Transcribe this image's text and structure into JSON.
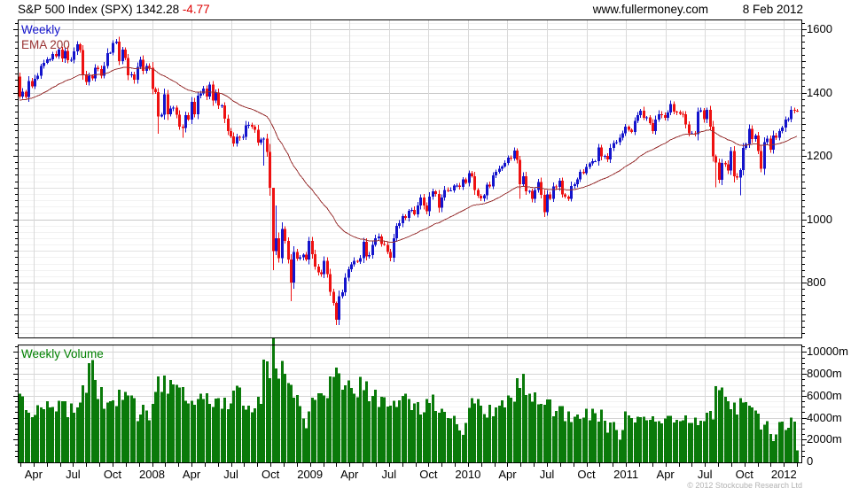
{
  "header": {
    "title": "S&P 500 Index (SPX) 1342.28",
    "change": "-4.77",
    "site": "www.fullermoney.com",
    "date": "8 Feb 2012"
  },
  "price_panel": {
    "legend_weekly": "Weekly",
    "legend_ema": "EMA 200",
    "axis_ticks": [
      1600,
      1400,
      1200,
      1000,
      800
    ]
  },
  "volume_panel": {
    "legend": "Weekly Volume",
    "axis_ticks": [
      {
        "label": "10000m",
        "value": 10000
      },
      {
        "label": "8000m",
        "value": 8000
      },
      {
        "label": "6000m",
        "value": 6000
      },
      {
        "label": "4000m",
        "value": 4000
      },
      {
        "label": "2000m",
        "value": 2000
      },
      {
        "label": "0",
        "value": 0
      }
    ]
  },
  "x_axis": {
    "labels": [
      {
        "text": "Apr",
        "m": 1
      },
      {
        "text": "Jul",
        "m": 4
      },
      {
        "text": "Oct",
        "m": 7
      },
      {
        "text": "2008",
        "m": 10
      },
      {
        "text": "Apr",
        "m": 13
      },
      {
        "text": "Jul",
        "m": 16
      },
      {
        "text": "Oct",
        "m": 19
      },
      {
        "text": "2009",
        "m": 22
      },
      {
        "text": "Apr",
        "m": 25
      },
      {
        "text": "Jul",
        "m": 28
      },
      {
        "text": "Oct",
        "m": 31
      },
      {
        "text": "2010",
        "m": 34
      },
      {
        "text": "Apr",
        "m": 37
      },
      {
        "text": "Jul",
        "m": 40
      },
      {
        "text": "Oct",
        "m": 43
      },
      {
        "text": "2011",
        "m": 46
      },
      {
        "text": "Apr",
        "m": 49
      },
      {
        "text": "Jul",
        "m": 52
      },
      {
        "text": "Oct",
        "m": 55
      },
      {
        "text": "2012",
        "m": 58
      }
    ]
  },
  "footer": {
    "copyright": "© 2012 Stockcube Research Ltd"
  },
  "colors": {
    "up": "#1414cc",
    "down": "#ee1111",
    "ema": "#993333",
    "volume": "#0a7a0a",
    "volume_text": "#008000",
    "change": "#dd0000",
    "copyright": "#b2b2b2",
    "grid_minor": "#f2f2f2",
    "grid_mid": "#e2e2e2",
    "grid_major": "#c9c9c9",
    "grid_vert": "#d9d9d9",
    "border": "#000000"
  },
  "chart_data": {
    "type": "candlestick+volume",
    "title": "S&P 500 Index (SPX)",
    "period": "weekly",
    "last_price": 1342.28,
    "last_change": -4.77,
    "date_range": [
      "2007-02-26",
      "2012-02-08"
    ],
    "price_axis_range": [
      624,
      1631
    ],
    "volume_axis_range": [
      0,
      10800
    ],
    "first_open": 1451,
    "closes": [
      1387,
      1403,
      1386,
      1436,
      1420,
      1443,
      1453,
      1484,
      1494,
      1505,
      1505,
      1522,
      1515,
      1536,
      1507,
      1532,
      1502,
      1503,
      1530,
      1552,
      1534,
      1458,
      1433,
      1453,
      1445,
      1479,
      1474,
      1453,
      1484,
      1525,
      1526,
      1557,
      1561,
      1500,
      1535,
      1509,
      1454,
      1458,
      1440,
      1481,
      1504,
      1468,
      1484,
      1478,
      1411,
      1401,
      1325,
      1330,
      1395,
      1331,
      1349,
      1353,
      1330,
      1293,
      1288,
      1329,
      1315,
      1370,
      1332,
      1390,
      1397,
      1413,
      1388,
      1425,
      1375,
      1400,
      1360,
      1360,
      1318,
      1278,
      1262,
      1239,
      1260,
      1257,
      1260,
      1296,
      1298,
      1292,
      1283,
      1242,
      1252,
      1255,
      1213,
      1099,
      899,
      940,
      877,
      969,
      931,
      873,
      800,
      896,
      876,
      880,
      888,
      873,
      932,
      890,
      850,
      832,
      826,
      869,
      827,
      770,
      735,
      683,
      757,
      769,
      816,
      842,
      857,
      869,
      866,
      877,
      929,
      883,
      887,
      919,
      940,
      946,
      921,
      919,
      896,
      879,
      940,
      979,
      987,
      1010,
      1004,
      1026,
      1029,
      1016,
      1043,
      1068,
      1044,
      1025,
      1071,
      1088,
      1080,
      1036,
      1069,
      1093,
      1091,
      1091,
      1106,
      1106,
      1102,
      1126,
      1115,
      1145,
      1136,
      1092,
      1074,
      1066,
      1076,
      1109,
      1104,
      1139,
      1150,
      1160,
      1167,
      1178,
      1194,
      1192,
      1217,
      1187,
      1111,
      1136,
      1088,
      1089,
      1065,
      1092,
      1118,
      1077,
      1023,
      1078,
      1065,
      1103,
      1102,
      1122,
      1079,
      1072,
      1065,
      1105,
      1110,
      1126,
      1149,
      1146,
      1165,
      1176,
      1183,
      1183,
      1226,
      1199,
      1200,
      1189,
      1225,
      1240,
      1244,
      1258,
      1272,
      1293,
      1283,
      1276,
      1311,
      1329,
      1343,
      1320,
      1321,
      1304,
      1279,
      1314,
      1332,
      1328,
      1320,
      1337,
      1364,
      1340,
      1338,
      1333,
      1331,
      1300,
      1271,
      1272,
      1268,
      1340,
      1344,
      1316,
      1345,
      1292,
      1199,
      1179,
      1124,
      1177,
      1174,
      1154,
      1216,
      1136,
      1131,
      1155,
      1225,
      1238,
      1285,
      1253,
      1264,
      1216,
      1159,
      1244,
      1255,
      1220,
      1265,
      1258,
      1278,
      1289,
      1315,
      1316,
      1345,
      1343,
      1342
    ],
    "wick_overrides": {
      "0": {
        "low": 1380
      },
      "46": {
        "low": 1270
      },
      "54": {
        "low": 1257
      },
      "81": {
        "low": 1169
      },
      "84": {
        "low": 839,
        "high": 1100
      },
      "85": {
        "high": 1044
      },
      "90": {
        "low": 741
      },
      "105": {
        "low": 666,
        "high": 740
      },
      "166": {
        "low": 1065
      },
      "231": {
        "low": 1101
      },
      "239": {
        "low": 1075
      }
    },
    "ema": {
      "label": "EMA 200",
      "period_days": 200,
      "seed": 1375
    },
    "volume_anchors": [
      [
        0,
        6200
      ],
      [
        1,
        5600
      ],
      [
        2,
        5100
      ],
      [
        3,
        4600
      ],
      [
        4,
        4300
      ],
      [
        6,
        5000
      ],
      [
        8,
        5600
      ],
      [
        10,
        5200
      ],
      [
        12,
        4900
      ],
      [
        14,
        5300
      ],
      [
        16,
        4700
      ],
      [
        18,
        5200
      ],
      [
        20,
        5600
      ],
      [
        22,
        7000
      ],
      [
        24,
        8600
      ],
      [
        25,
        7200
      ],
      [
        26,
        6600
      ],
      [
        28,
        5600
      ],
      [
        30,
        5200
      ],
      [
        32,
        5700
      ],
      [
        34,
        6100
      ],
      [
        36,
        5900
      ],
      [
        38,
        5300
      ],
      [
        39,
        3900
      ],
      [
        41,
        5800
      ],
      [
        43,
        3400
      ],
      [
        45,
        6400
      ],
      [
        46,
        8400
      ],
      [
        47,
        7200
      ],
      [
        49,
        6600
      ],
      [
        52,
        6300
      ],
      [
        55,
        6100
      ],
      [
        58,
        5700
      ],
      [
        61,
        5300
      ],
      [
        64,
        5500
      ],
      [
        67,
        5100
      ],
      [
        70,
        5900
      ],
      [
        72,
        6700
      ],
      [
        75,
        5400
      ],
      [
        78,
        5200
      ],
      [
        80,
        6200
      ],
      [
        81,
        10200
      ],
      [
        82,
        8400
      ],
      [
        83,
        8800
      ],
      [
        84,
        10000
      ],
      [
        85,
        8600
      ],
      [
        86,
        8800
      ],
      [
        88,
        7600
      ],
      [
        90,
        7100
      ],
      [
        92,
        6300
      ],
      [
        94,
        3400
      ],
      [
        95,
        3000
      ],
      [
        97,
        5600
      ],
      [
        100,
        6200
      ],
      [
        103,
        7000
      ],
      [
        105,
        7700
      ],
      [
        107,
        7400
      ],
      [
        110,
        7100
      ],
      [
        113,
        6900
      ],
      [
        116,
        6300
      ],
      [
        119,
        5700
      ],
      [
        122,
        5300
      ],
      [
        125,
        5900
      ],
      [
        128,
        5500
      ],
      [
        131,
        5200
      ],
      [
        134,
        5000
      ],
      [
        137,
        5400
      ],
      [
        140,
        4800
      ],
      [
        143,
        4400
      ],
      [
        145,
        3000
      ],
      [
        147,
        2100
      ],
      [
        149,
        4700
      ],
      [
        151,
        5600
      ],
      [
        153,
        4900
      ],
      [
        156,
        4500
      ],
      [
        159,
        4900
      ],
      [
        162,
        5200
      ],
      [
        164,
        5700
      ],
      [
        166,
        7500
      ],
      [
        167,
        7300
      ],
      [
        169,
        6200
      ],
      [
        172,
        5600
      ],
      [
        175,
        5100
      ],
      [
        178,
        4700
      ],
      [
        181,
        4300
      ],
      [
        184,
        4000
      ],
      [
        187,
        4300
      ],
      [
        190,
        4500
      ],
      [
        193,
        4200
      ],
      [
        195,
        2700
      ],
      [
        197,
        3700
      ],
      [
        199,
        2000
      ],
      [
        201,
        4400
      ],
      [
        204,
        4100
      ],
      [
        207,
        4000
      ],
      [
        210,
        3800
      ],
      [
        213,
        3700
      ],
      [
        216,
        3900
      ],
      [
        219,
        3800
      ],
      [
        222,
        4000
      ],
      [
        225,
        3700
      ],
      [
        228,
        3900
      ],
      [
        230,
        4200
      ],
      [
        231,
        8000
      ],
      [
        232,
        6300
      ],
      [
        233,
        5900
      ],
      [
        235,
        5000
      ],
      [
        237,
        4800
      ],
      [
        239,
        5200
      ],
      [
        241,
        5000
      ],
      [
        243,
        4600
      ],
      [
        245,
        4400
      ],
      [
        246,
        2800
      ],
      [
        248,
        3700
      ],
      [
        250,
        2000
      ],
      [
        252,
        3100
      ],
      [
        254,
        3400
      ],
      [
        256,
        3500
      ],
      [
        257,
        3400
      ],
      [
        258,
        1000
      ]
    ]
  }
}
